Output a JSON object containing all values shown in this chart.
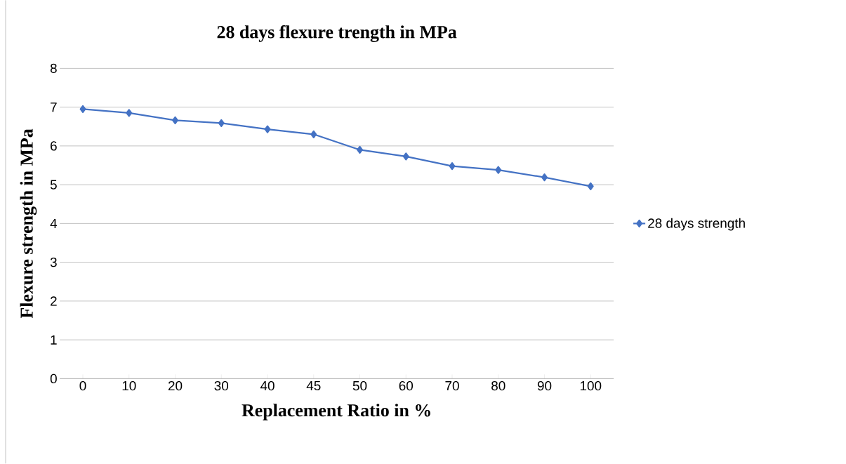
{
  "chart_data": {
    "type": "line",
    "title": "28 days flexure trength in MPa",
    "xlabel": "Replacement Ratio in %",
    "ylabel": "Flexure strength in MPa",
    "categories": [
      "0",
      "10",
      "20",
      "30",
      "40",
      "45",
      "50",
      "60",
      "70",
      "80",
      "90",
      "100"
    ],
    "series": [
      {
        "name": "28 days strength",
        "color": "#4472c4",
        "values": [
          6.95,
          6.85,
          6.66,
          6.59,
          6.43,
          6.3,
          5.9,
          5.73,
          5.48,
          5.38,
          5.19,
          4.96
        ]
      }
    ],
    "ylim": [
      0,
      8
    ],
    "yticks": [
      0,
      1,
      2,
      3,
      4,
      5,
      6,
      7,
      8
    ],
    "grid": "y",
    "legend": "right",
    "marker": "diamond",
    "line_style": "solid"
  }
}
